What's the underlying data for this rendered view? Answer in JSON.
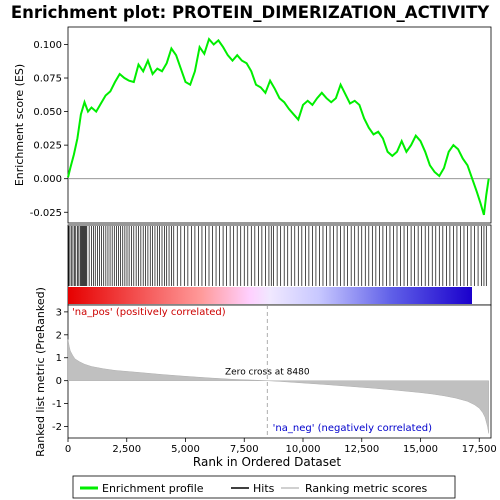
{
  "chart_data": {
    "type": "line",
    "title": "Enrichment plot: PROTEIN_DIMERIZATION_ACTIVITY",
    "xlabel": "Rank in Ordered Dataset",
    "xlim": [
      0,
      18000
    ],
    "x_ticks": [
      0,
      2500,
      5000,
      7500,
      10000,
      12500,
      15000,
      17500
    ],
    "x_tick_labels": [
      "0",
      "2,500",
      "5,000",
      "7,500",
      "10,000",
      "12,500",
      "15,000",
      "17,500"
    ],
    "es_panel": {
      "ylabel": "Enrichment score (ES)",
      "ylim": [
        -0.033,
        0.113
      ],
      "y_ticks": [
        -0.025,
        0.0,
        0.025,
        0.05,
        0.075,
        0.1
      ],
      "y_tick_labels": [
        "-0.025",
        "0.000",
        "0.025",
        "0.050",
        "0.075",
        "0.100"
      ],
      "color": "#00ee00",
      "series": [
        {
          "name": "Enrichment profile",
          "x": [
            0,
            100,
            250,
            400,
            550,
            700,
            850,
            1000,
            1200,
            1400,
            1600,
            1800,
            2000,
            2200,
            2400,
            2600,
            2800,
            3000,
            3200,
            3400,
            3600,
            3800,
            4000,
            4200,
            4400,
            4600,
            4800,
            5000,
            5200,
            5400,
            5600,
            5800,
            6000,
            6200,
            6400,
            6600,
            6800,
            7000,
            7200,
            7400,
            7600,
            7800,
            8000,
            8200,
            8400,
            8600,
            8800,
            9000,
            9200,
            9400,
            9600,
            9800,
            10000,
            10200,
            10400,
            10600,
            10800,
            11000,
            11200,
            11400,
            11600,
            11800,
            12000,
            12200,
            12400,
            12600,
            12800,
            13000,
            13200,
            13400,
            13600,
            13800,
            14000,
            14200,
            14400,
            14600,
            14800,
            15000,
            15200,
            15400,
            15600,
            15800,
            16000,
            16200,
            16400,
            16600,
            16800,
            17000,
            17200,
            17400,
            17550,
            17700,
            17800,
            17900
          ],
          "y": [
            0.001,
            0.008,
            0.018,
            0.03,
            0.048,
            0.057,
            0.05,
            0.053,
            0.05,
            0.056,
            0.062,
            0.065,
            0.072,
            0.078,
            0.075,
            0.073,
            0.072,
            0.085,
            0.08,
            0.088,
            0.078,
            0.082,
            0.08,
            0.086,
            0.097,
            0.092,
            0.082,
            0.072,
            0.07,
            0.08,
            0.098,
            0.093,
            0.104,
            0.1,
            0.103,
            0.098,
            0.092,
            0.088,
            0.092,
            0.088,
            0.086,
            0.08,
            0.07,
            0.068,
            0.064,
            0.073,
            0.067,
            0.06,
            0.057,
            0.052,
            0.048,
            0.044,
            0.055,
            0.058,
            0.055,
            0.06,
            0.064,
            0.06,
            0.057,
            0.06,
            0.07,
            0.063,
            0.056,
            0.058,
            0.055,
            0.045,
            0.038,
            0.033,
            0.035,
            0.03,
            0.02,
            0.017,
            0.02,
            0.028,
            0.02,
            0.025,
            0.032,
            0.028,
            0.02,
            0.01,
            0.005,
            0.002,
            0.008,
            0.02,
            0.025,
            0.022,
            0.015,
            0.01,
            0.0,
            -0.01,
            -0.018,
            -0.027,
            -0.012,
            0.0
          ]
        }
      ],
      "zero_line": true
    },
    "hits_panel": {
      "legend_name": "Hits",
      "hit_ranks": [
        30,
        80,
        140,
        210,
        270,
        330,
        400,
        460,
        520,
        560,
        600,
        640,
        680,
        720,
        760,
        800,
        900,
        1000,
        1080,
        1160,
        1250,
        1340,
        1430,
        1520,
        1610,
        1700,
        1790,
        1880,
        1970,
        2060,
        2150,
        2240,
        2330,
        2420,
        2510,
        2600,
        2700,
        2800,
        2900,
        3000,
        3100,
        3200,
        3300,
        3400,
        3500,
        3600,
        3700,
        3800,
        3900,
        4000,
        4100,
        4200,
        4300,
        4400,
        4500,
        4650,
        4800,
        4950,
        5100,
        5250,
        5400,
        5550,
        5700,
        5850,
        6000,
        6150,
        6300,
        6450,
        6600,
        6750,
        6900,
        7050,
        7200,
        7350,
        7500,
        7650,
        7800,
        7950,
        8100,
        8250,
        8400,
        8550,
        8650,
        8750,
        8900,
        9050,
        9200,
        9350,
        9500,
        9650,
        9800,
        9950,
        10100,
        10250,
        10400,
        10550,
        10700,
        10850,
        11000,
        11150,
        11300,
        11450,
        11600,
        11750,
        11900,
        12050,
        12200,
        12350,
        12500,
        12650,
        12800,
        12950,
        13100,
        13250,
        13400,
        13550,
        13700,
        13850,
        14000,
        14150,
        14300,
        14450,
        14600,
        14750,
        14900,
        15050,
        15200,
        15350,
        15500,
        15650,
        15800,
        15950,
        16100,
        16250,
        16400,
        16550,
        16700,
        16850,
        17000,
        17150,
        17300,
        17450,
        17600,
        17700,
        17800
      ]
    },
    "metric_panel": {
      "ylabel": "Ranked list metric (PreRanked)",
      "ylim": [
        -2.5,
        3.3
      ],
      "y_ticks": [
        -2,
        -1,
        0,
        1,
        2,
        3
      ],
      "y_tick_labels": [
        "-2",
        "-1",
        "0",
        "1",
        "2",
        "3"
      ],
      "fill_color": "#c0c0c0",
      "legend_name": "Ranking metric scores",
      "x": [
        0,
        50,
        100,
        200,
        300,
        500,
        700,
        1000,
        1500,
        2000,
        3000,
        4000,
        5000,
        6000,
        7000,
        8000,
        8480,
        9000,
        10000,
        11000,
        12000,
        13000,
        14000,
        15000,
        15500,
        16000,
        16500,
        17000,
        17300,
        17500,
        17650,
        17750,
        17850,
        17900
      ],
      "y": [
        1.8,
        1.5,
        1.3,
        1.1,
        0.95,
        0.82,
        0.72,
        0.62,
        0.52,
        0.45,
        0.36,
        0.27,
        0.19,
        0.12,
        0.06,
        0.02,
        0.0,
        -0.03,
        -0.1,
        -0.17,
        -0.25,
        -0.33,
        -0.42,
        -0.52,
        -0.58,
        -0.66,
        -0.76,
        -0.9,
        -1.05,
        -1.2,
        -1.4,
        -1.6,
        -2.0,
        -2.3
      ],
      "zero_cross_rank": 8480,
      "zero_cross_label": "Zero cross at 8480",
      "pos_label": "'na_pos' (positively correlated)",
      "neg_label": "'na_neg' (negatively correlated)",
      "pos_color": "#cc0000",
      "neg_color": "#0000cc"
    },
    "legend": {
      "items": [
        {
          "label": "Enrichment profile",
          "color": "#00ee00"
        },
        {
          "label": "Hits",
          "color": "#000000"
        },
        {
          "label": "Ranking metric scores",
          "color": "#c0c0c0"
        }
      ],
      "placement": "bottom"
    }
  }
}
